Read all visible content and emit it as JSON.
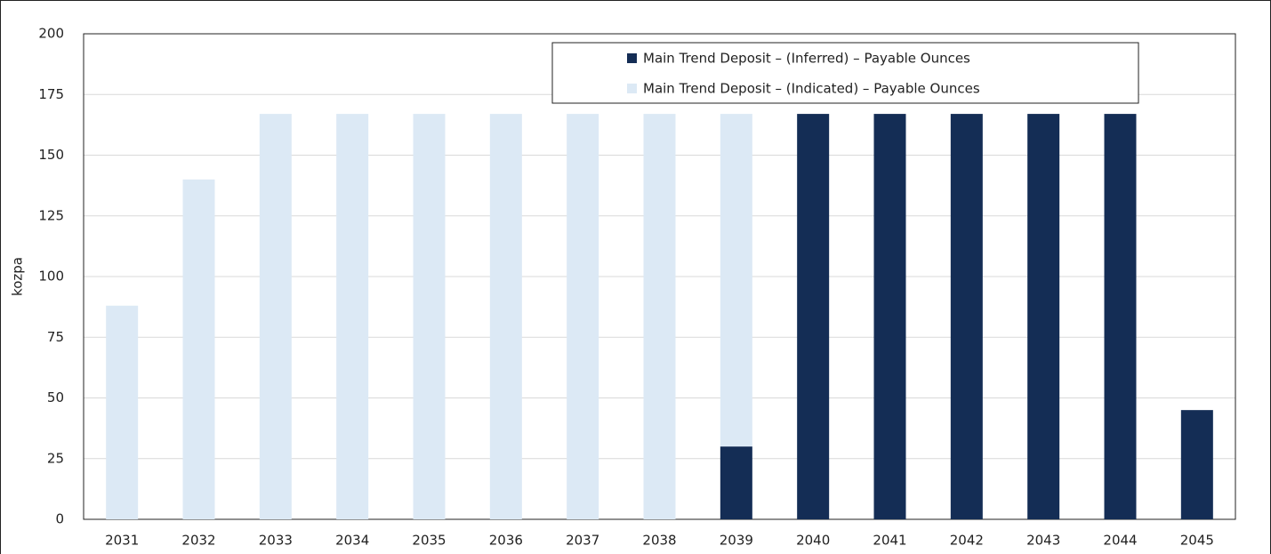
{
  "chart_data": {
    "type": "stacked_bar",
    "y_label": "kozpa",
    "categories": [
      "2031",
      "2032",
      "2033",
      "2034",
      "2035",
      "2036",
      "2037",
      "2038",
      "2039",
      "2040",
      "2041",
      "2042",
      "2043",
      "2044",
      "2045"
    ],
    "series": [
      {
        "name": "Main Trend Deposit – (Inferred)  – Payable Ounces",
        "color": "#142d55",
        "values": [
          0,
          0,
          0,
          0,
          0,
          0,
          0,
          0,
          30,
          167,
          167,
          167,
          167,
          167,
          45
        ]
      },
      {
        "name": "Main Trend Deposit – (Indicated)  – Payable Ounces",
        "color": "#dce9f5",
        "values": [
          88,
          140,
          167,
          167,
          167,
          167,
          167,
          167,
          137,
          0,
          0,
          0,
          0,
          0,
          0
        ]
      }
    ],
    "ylim": [
      0,
      200
    ],
    "yticks": [
      0,
      25,
      50,
      75,
      100,
      125,
      150,
      175,
      200
    ],
    "grid": true,
    "legend": "top-right"
  }
}
